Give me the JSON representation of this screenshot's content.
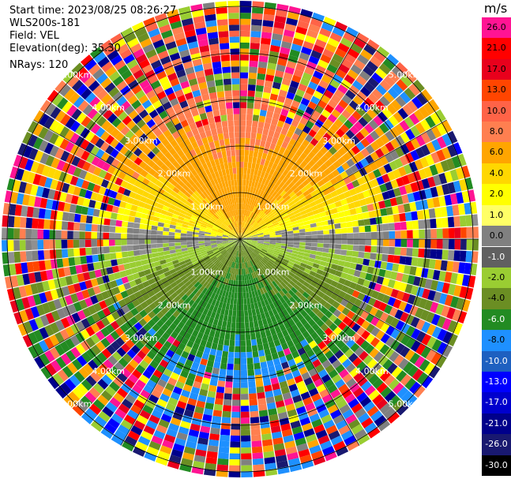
{
  "info": {
    "start_time": "Start time: 2023/08/25 08:26:27",
    "instrument": "WLS200s-181",
    "field": "Field: VEL",
    "elevation": "Elevation(deg): 35.30",
    "nrays": "NRays: 120"
  },
  "ring_labels": [
    "1.00km",
    "2.00km",
    "3.00km",
    "4.00km",
    "5.00km"
  ],
  "colorbar": {
    "unit": "m/s",
    "levels": [
      "26.0",
      "21.0",
      "17.0",
      "13.0",
      "10.0",
      "8.0",
      "6.0",
      "4.0",
      "2.0",
      "1.0",
      "0.0",
      "-1.0",
      "-2.0",
      "-4.0",
      "-6.0",
      "-8.0",
      "-10.0",
      "-13.0",
      "-17.0",
      "-21.0",
      "-26.0",
      "-30.0"
    ],
    "colors": [
      "#ff1493",
      "#ff0000",
      "#e8001c",
      "#ff4500",
      "#ff6347",
      "#ff7f50",
      "#ffa500",
      "#ffd700",
      "#ffff00",
      "#ffff66",
      "#808080",
      "#606060",
      "#9acd32",
      "#6b8e23",
      "#228b22",
      "#1e90ff",
      "#1e60c0",
      "#0000ff",
      "#0000cd",
      "#00008b",
      "#191970",
      "#000000"
    ]
  }
}
